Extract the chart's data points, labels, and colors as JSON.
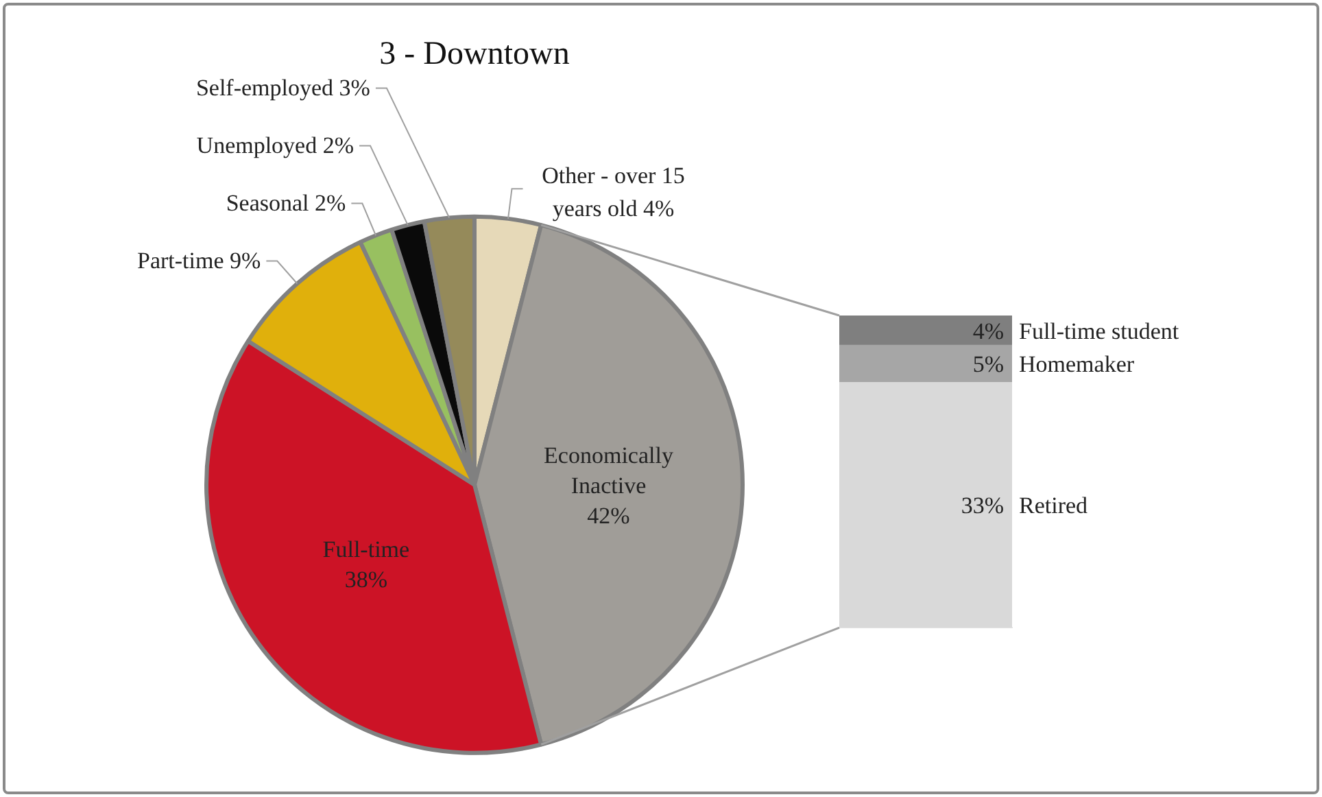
{
  "chart_data": [
    {
      "type": "pie",
      "title": "3 - Downtown",
      "categories": [
        "Other - over 15 years old",
        "Economically Inactive",
        "Full-time",
        "Part-time",
        "Seasonal",
        "Unemployed",
        "Self-employed"
      ],
      "values": [
        4,
        42,
        38,
        9,
        2,
        2,
        3
      ],
      "value_labels": [
        "4%",
        "42%",
        "38%",
        "9%",
        "2%",
        "2%",
        "3%"
      ],
      "colors": [
        "#e6d9b8",
        "#a09d98",
        "#cc1326",
        "#e0b00c",
        "#98c060",
        "#0a0a0a",
        "#958a5a"
      ],
      "legend": false
    },
    {
      "type": "bar",
      "stacked": true,
      "categories": [
        null
      ],
      "legend": false,
      "series": [
        {
          "name": "Retired",
          "color": "#d9d9d9",
          "values": [
            33
          ],
          "value_labels": [
            "33%"
          ]
        },
        {
          "name": "Homemaker",
          "color": "#a6a6a6",
          "values": [
            5
          ],
          "value_labels": [
            "5%"
          ]
        },
        {
          "name": "Full-time student",
          "color": "#7f7f7f",
          "values": [
            4
          ],
          "value_labels": [
            "4%"
          ]
        }
      ]
    }
  ]
}
